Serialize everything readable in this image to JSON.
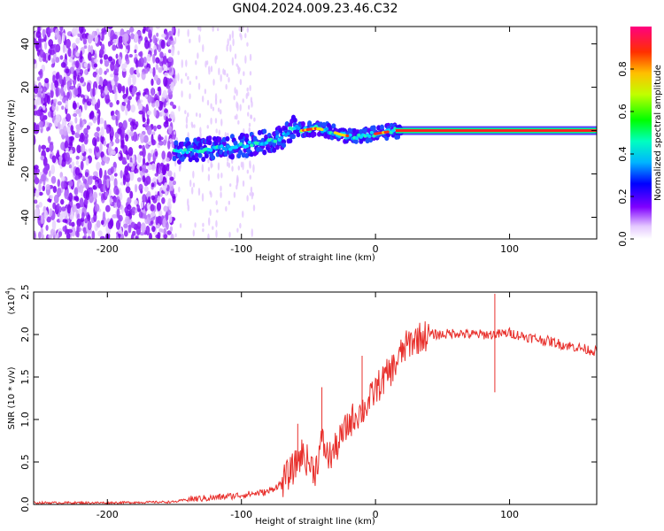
{
  "title": "GN04.2024.009.23.46.C32",
  "chart_data": [
    {
      "type": "heatmap",
      "title": "GN04.2024.009.23.46.C32",
      "xlabel": "Height of straight line (km)",
      "ylabel": "Frequency (Hz)",
      "xlim": [
        -255,
        165
      ],
      "ylim": [
        -50,
        48
      ],
      "x_ticks": [
        -200,
        -100,
        0,
        100
      ],
      "x_tick_labels": [
        "-200",
        "-100",
        "0",
        "100"
      ],
      "y_ticks": [
        -40,
        -20,
        0,
        20,
        40
      ],
      "y_tick_labels": [
        "-40",
        "-20",
        "0",
        "20",
        "40"
      ],
      "colorbar": {
        "label": "Normalized spectral amplitude",
        "range": [
          0,
          1
        ],
        "ticks": [
          0.0,
          0.2,
          0.4,
          0.6,
          0.8
        ],
        "tick_labels": [
          "0.0",
          "0.2",
          "0.4",
          "0.6",
          "0.8"
        ],
        "colormap": "rainbow"
      },
      "signal_track": [
        {
          "x": -150,
          "y": -10
        },
        {
          "x": -140,
          "y": -9
        },
        {
          "x": -130,
          "y": -9
        },
        {
          "x": -120,
          "y": -8
        },
        {
          "x": -110,
          "y": -8
        },
        {
          "x": -100,
          "y": -7
        },
        {
          "x": -90,
          "y": -6
        },
        {
          "x": -80,
          "y": -5
        },
        {
          "x": -70,
          "y": -3
        },
        {
          "x": -60,
          "y": 2
        },
        {
          "x": -55,
          "y": 0
        },
        {
          "x": -45,
          "y": 1
        },
        {
          "x": -35,
          "y": 0
        },
        {
          "x": -25,
          "y": -2
        },
        {
          "x": -15,
          "y": -3
        },
        {
          "x": -5,
          "y": -2
        },
        {
          "x": 5,
          "y": -1
        },
        {
          "x": 15,
          "y": 0
        },
        {
          "x": 165,
          "y": 0
        }
      ],
      "noise_region_xmax": -150,
      "grid": false
    },
    {
      "type": "line",
      "xlabel": "Height of straight line (km)",
      "ylabel": "SNR (10 * v/v)",
      "y_multiplier": "(x10",
      "y_multiplier_exp": "4",
      "y_multiplier_close": ")",
      "xlim": [
        -255,
        165
      ],
      "ylim": [
        0,
        2.5
      ],
      "x_ticks": [
        -200,
        -100,
        0,
        100
      ],
      "x_tick_labels": [
        "-200",
        "-100",
        "0",
        "100"
      ],
      "y_ticks": [
        0.0,
        0.5,
        1.0,
        1.5,
        2.0,
        2.5
      ],
      "y_tick_labels": [
        "0.0",
        "0.5",
        "1.0",
        "1.5",
        "2.0",
        "2.5"
      ],
      "series_color": "#e8302c",
      "series": [
        {
          "x": [
            -255,
            -200,
            -150,
            -140,
            -120,
            -100,
            -80,
            -70,
            -60,
            -55,
            -50,
            -45,
            -40,
            -35,
            -30,
            -25,
            -20,
            -15,
            -10,
            -5,
            0,
            5,
            10,
            15,
            20,
            25,
            30,
            40,
            50,
            60,
            70,
            80,
            90,
            100,
            110,
            120,
            130,
            140,
            150,
            165
          ],
          "y": [
            0.02,
            0.02,
            0.03,
            0.06,
            0.08,
            0.11,
            0.15,
            0.25,
            0.45,
            0.6,
            0.5,
            0.4,
            0.75,
            0.55,
            0.65,
            0.8,
            0.95,
            1.05,
            1.1,
            1.2,
            1.35,
            1.45,
            1.55,
            1.65,
            1.8,
            1.9,
            1.95,
            2.0,
            2.0,
            2.02,
            2.0,
            2.0,
            2.0,
            2.02,
            1.98,
            1.95,
            1.92,
            1.88,
            1.85,
            1.8
          ]
        }
      ],
      "spikes": [
        {
          "x": 89,
          "y": 2.48
        },
        {
          "x": 89,
          "y": 1.32
        },
        {
          "x": -58,
          "y": 0.95
        },
        {
          "x": -40,
          "y": 1.38
        },
        {
          "x": -10,
          "y": 1.75
        }
      ],
      "grid": false
    }
  ]
}
